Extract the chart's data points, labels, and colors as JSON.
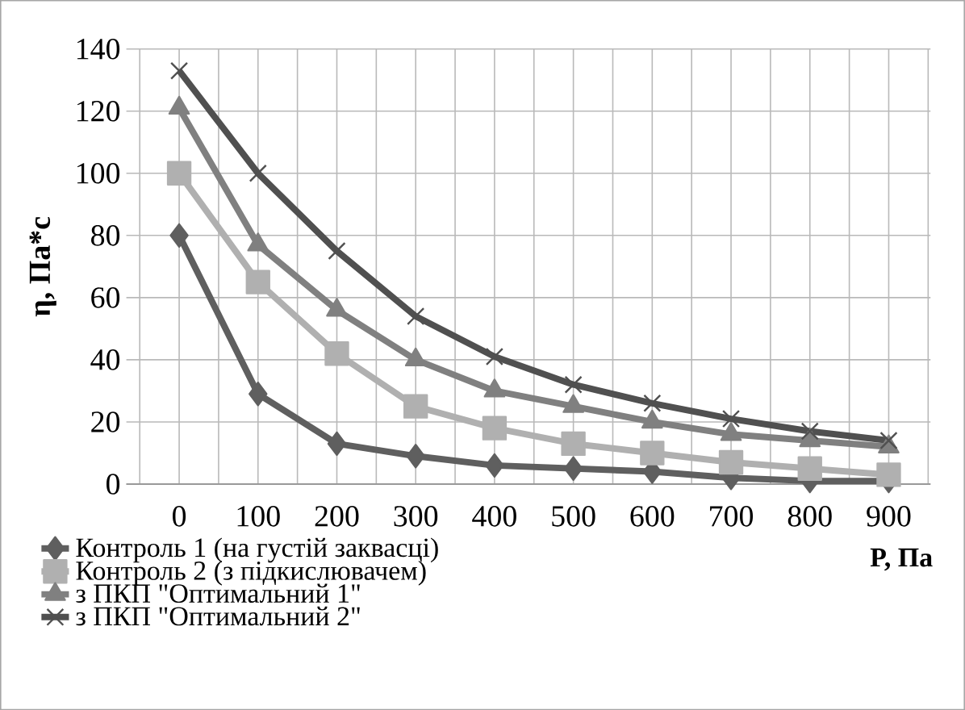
{
  "chart_data": {
    "type": "line",
    "xlabel": "P, Па",
    "ylabel": "η, Па*с",
    "categories": [
      "0",
      "100",
      "200",
      "300",
      "400",
      "500",
      "600",
      "700",
      "800",
      "900"
    ],
    "series": [
      {
        "name": "Контроль 1 (на густій заквасці)",
        "color": "#5f5f5f",
        "marker": "diamond",
        "values": [
          80,
          29,
          13,
          9,
          6,
          5,
          4,
          2,
          1,
          1
        ]
      },
      {
        "name": "Контроль 2 (з підкислювачем)",
        "color": "#b0b0b0",
        "marker": "square",
        "values": [
          100,
          65,
          42,
          25,
          18,
          13,
          10,
          7,
          5,
          3
        ]
      },
      {
        "name": "з ПКП \"Оптимальний 1\"",
        "color": "#808080",
        "marker": "triangle",
        "values": [
          121,
          77,
          56,
          40,
          30,
          25,
          20,
          16,
          14,
          12
        ]
      },
      {
        "name": "з ПКП \"Оптимальний 2\"",
        "color": "#505050",
        "marker": "cross",
        "values": [
          133,
          100,
          75,
          54,
          41,
          32,
          26,
          21,
          17,
          14
        ]
      }
    ],
    "ylim": [
      0,
      140
    ],
    "yticks": [
      0,
      20,
      40,
      60,
      80,
      100,
      120,
      140
    ],
    "grid": true,
    "legend": "bottom"
  }
}
